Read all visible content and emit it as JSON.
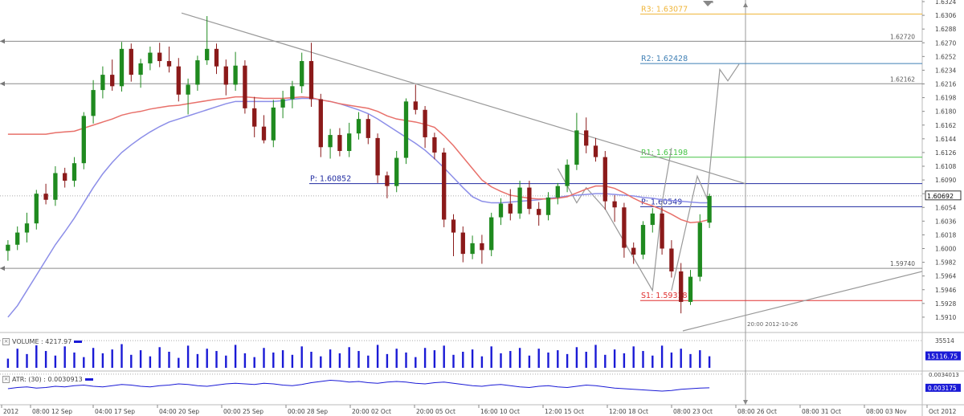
{
  "chart_data": [
    {
      "type": "line",
      "panel": "price",
      "ylim": [
        1.5892,
        1.6324
      ],
      "yticks": [
        "1.6324",
        "1.6306",
        "1.6288",
        "1.6270",
        "1.6252",
        "1.6234",
        "1.6216",
        "1.6198",
        "1.6180",
        "1.6162",
        "1.6144",
        "1.6126",
        "1.6108",
        "1.6090",
        "1.6072",
        "1.6054",
        "1.6036",
        "1.6018",
        "1.6000",
        "1.5982",
        "1.5964",
        "1.5946",
        "1.5928",
        "1.5910"
      ],
      "current_price_label": "1.60692",
      "current_price": 1.60692,
      "pivot_levels": [
        {
          "label": "R3: 1.63077",
          "value": 1.63077,
          "color": "#f0b63b"
        },
        {
          "label": "R2: 1.62428",
          "value": 1.62428,
          "color": "#3f7fb4"
        },
        {
          "label": "R1: 1.61198",
          "value": 1.61198,
          "color": "#45c445"
        },
        {
          "label": "P: 1.60852",
          "value": 1.60852,
          "color": "#1f2aa0"
        },
        {
          "label": "P: 1.60549",
          "value": 1.60549,
          "color": "#1f2aa0"
        },
        {
          "label": "S1: 1.59318",
          "value": 1.59318,
          "color": "#e03030"
        }
      ],
      "horizontal_lines": [
        {
          "label": "1.62720",
          "value": 1.6272
        },
        {
          "label": "1.62162",
          "value": 1.62162
        },
        {
          "label": "1.59740",
          "value": 1.5974
        }
      ],
      "vline_label": "20:00 2012-10-26",
      "xticks": [
        "2012",
        "08:00 12 Sep",
        "04:00 17 Sep",
        "04:00 20 Sep",
        "00:00 25 Sep",
        "00:00 28 Sep",
        "20:00 02 Oct",
        "20:00 05 Oct",
        "16:00 10 Oct",
        "12:00 15 Oct",
        "12:00 18 Oct",
        "08:00 23 Oct",
        "08:00 26 Oct",
        "08:00 31 Oct",
        "08:00 03 Nov",
        "Oct 2012"
      ],
      "ohlc": [
        [
          1.5997,
          1.6011,
          1.5984,
          1.6005
        ],
        [
          1.6005,
          1.6029,
          1.5998,
          1.6021
        ],
        [
          1.6021,
          1.6047,
          1.6008,
          1.6033
        ],
        [
          1.6033,
          1.6077,
          1.6025,
          1.6072
        ],
        [
          1.6072,
          1.6085,
          1.6058,
          1.6064
        ],
        [
          1.6064,
          1.6108,
          1.6056,
          1.6099
        ],
        [
          1.6099,
          1.6106,
          1.608,
          1.6089
        ],
        [
          1.6089,
          1.612,
          1.6081,
          1.6112
        ],
        [
          1.6112,
          1.6179,
          1.6104,
          1.6174
        ],
        [
          1.6174,
          1.6221,
          1.6164,
          1.6208
        ],
        [
          1.6208,
          1.6239,
          1.6197,
          1.6228
        ],
        [
          1.6228,
          1.6248,
          1.6207,
          1.6213
        ],
        [
          1.6213,
          1.6271,
          1.6206,
          1.6262
        ],
        [
          1.6262,
          1.6269,
          1.6219,
          1.6228
        ],
        [
          1.6228,
          1.6249,
          1.6211,
          1.6243
        ],
        [
          1.6243,
          1.6265,
          1.6234,
          1.6257
        ],
        [
          1.6257,
          1.627,
          1.6238,
          1.6246
        ],
        [
          1.6246,
          1.6265,
          1.6231,
          1.6239
        ],
        [
          1.6239,
          1.625,
          1.6193,
          1.6202
        ],
        [
          1.6202,
          1.6223,
          1.6176,
          1.6215
        ],
        [
          1.6215,
          1.6253,
          1.6207,
          1.6247
        ],
        [
          1.6247,
          1.6305,
          1.6241,
          1.6262
        ],
        [
          1.6262,
          1.6269,
          1.6229,
          1.6239
        ],
        [
          1.6239,
          1.6248,
          1.6201,
          1.6215
        ],
        [
          1.6215,
          1.6258,
          1.6207,
          1.624
        ],
        [
          1.624,
          1.6247,
          1.6177,
          1.6184
        ],
        [
          1.6184,
          1.6199,
          1.6146,
          1.616
        ],
        [
          1.616,
          1.6175,
          1.6138,
          1.6142
        ],
        [
          1.6142,
          1.6195,
          1.6133,
          1.6185
        ],
        [
          1.6185,
          1.6207,
          1.6171,
          1.6196
        ],
        [
          1.6196,
          1.622,
          1.6184,
          1.6213
        ],
        [
          1.6213,
          1.6257,
          1.6204,
          1.6246
        ],
        [
          1.6246,
          1.627,
          1.6186,
          1.6196
        ],
        [
          1.6196,
          1.6203,
          1.612,
          1.6133
        ],
        [
          1.6133,
          1.6157,
          1.6118,
          1.6149
        ],
        [
          1.6149,
          1.6158,
          1.6121,
          1.6128
        ],
        [
          1.6128,
          1.6165,
          1.612,
          1.6151
        ],
        [
          1.6151,
          1.6179,
          1.6143,
          1.617
        ],
        [
          1.617,
          1.6176,
          1.6137,
          1.6145
        ],
        [
          1.6145,
          1.6151,
          1.6086,
          1.6096
        ],
        [
          1.6096,
          1.6101,
          1.6066,
          1.6082
        ],
        [
          1.6082,
          1.6128,
          1.6074,
          1.6119
        ],
        [
          1.6119,
          1.6197,
          1.6111,
          1.6193
        ],
        [
          1.6193,
          1.6215,
          1.6176,
          1.6182
        ],
        [
          1.6182,
          1.6187,
          1.6132,
          1.6146
        ],
        [
          1.6146,
          1.6152,
          1.6117,
          1.6126
        ],
        [
          1.6126,
          1.6132,
          1.6028,
          1.6038
        ],
        [
          1.6038,
          1.6045,
          1.599,
          1.6021
        ],
        [
          1.6021,
          1.6029,
          1.5982,
          1.5993
        ],
        [
          1.5993,
          1.6017,
          1.5986,
          1.6007
        ],
        [
          1.6007,
          1.6018,
          1.598,
          1.5998
        ],
        [
          1.5998,
          1.6047,
          1.599,
          1.6041
        ],
        [
          1.6041,
          1.6066,
          1.6031,
          1.6059
        ],
        [
          1.6059,
          1.6078,
          1.6037,
          1.6046
        ],
        [
          1.6046,
          1.6089,
          1.6039,
          1.608
        ],
        [
          1.608,
          1.6089,
          1.6045,
          1.6052
        ],
        [
          1.6052,
          1.6061,
          1.603,
          1.6044
        ],
        [
          1.6044,
          1.6074,
          1.6037,
          1.6067
        ],
        [
          1.6067,
          1.6086,
          1.6058,
          1.6082
        ],
        [
          1.6082,
          1.6117,
          1.6074,
          1.611
        ],
        [
          1.611,
          1.6178,
          1.6103,
          1.6155
        ],
        [
          1.6155,
          1.6172,
          1.6125,
          1.6135
        ],
        [
          1.6135,
          1.6145,
          1.6114,
          1.612
        ],
        [
          1.612,
          1.6128,
          1.6051,
          1.6062
        ],
        [
          1.6062,
          1.607,
          1.6035,
          1.6054
        ],
        [
          1.6054,
          1.606,
          1.5988,
          1.6001
        ],
        [
          1.6001,
          1.6008,
          1.598,
          1.5992
        ],
        [
          1.5992,
          1.6036,
          1.5986,
          1.6031
        ],
        [
          1.6031,
          1.6053,
          1.6021,
          1.6046
        ],
        [
          1.6046,
          1.6054,
          1.5992,
          1.6
        ],
        [
          1.6,
          1.6011,
          1.5962,
          1.597
        ],
        [
          1.597,
          1.5981,
          1.5915,
          1.593
        ],
        [
          1.593,
          1.5972,
          1.5926,
          1.5963
        ],
        [
          1.5963,
          1.6045,
          1.5957,
          1.6034
        ],
        [
          1.6034,
          1.6072,
          1.6027,
          1.6069
        ]
      ],
      "ma_red": [
        1.615,
        1.615,
        1.615,
        1.615,
        1.615,
        1.6152,
        1.6153,
        1.6154,
        1.6158,
        1.6162,
        1.6166,
        1.617,
        1.6175,
        1.6178,
        1.618,
        1.6183,
        1.6185,
        1.6187,
        1.6188,
        1.619,
        1.6192,
        1.6194,
        1.6196,
        1.6197,
        1.6199,
        1.6199,
        1.6198,
        1.6197,
        1.6197,
        1.6197,
        1.6198,
        1.6199,
        1.6198,
        1.6195,
        1.6193,
        1.619,
        1.6188,
        1.6186,
        1.6184,
        1.618,
        1.6174,
        1.617,
        1.6168,
        1.6166,
        1.6163,
        1.6159,
        1.6148,
        1.6135,
        1.612,
        1.6105,
        1.609,
        1.6081,
        1.6075,
        1.607,
        1.6068,
        1.6066,
        1.6065,
        1.6065,
        1.6066,
        1.6068,
        1.6073,
        1.6078,
        1.6082,
        1.6082,
        1.6079,
        1.6073,
        1.6066,
        1.606,
        1.6056,
        1.6051,
        1.6045,
        1.6038,
        1.6034,
        1.6035,
        1.6038
      ],
      "ma_blue": [
        1.591,
        1.5925,
        1.5945,
        1.5965,
        1.5985,
        1.6005,
        1.6022,
        1.604,
        1.606,
        1.608,
        1.6098,
        1.6113,
        1.6126,
        1.6136,
        1.6145,
        1.6153,
        1.616,
        1.6166,
        1.617,
        1.6174,
        1.6178,
        1.6182,
        1.6186,
        1.619,
        1.6193,
        1.6193,
        1.6193,
        1.6193,
        1.6193,
        1.6194,
        1.6196,
        1.6197,
        1.6197,
        1.6195,
        1.6193,
        1.619,
        1.6186,
        1.6182,
        1.6177,
        1.617,
        1.6162,
        1.6154,
        1.6146,
        1.6138,
        1.6129,
        1.6118,
        1.6106,
        1.6093,
        1.608,
        1.6068,
        1.6062,
        1.606,
        1.606,
        1.6061,
        1.6062,
        1.6063,
        1.6064,
        1.6066,
        1.6067,
        1.6069,
        1.607,
        1.6071,
        1.6072,
        1.6072,
        1.6071,
        1.607,
        1.6069,
        1.6067,
        1.6066,
        1.6064,
        1.6063,
        1.6062,
        1.6061,
        1.606,
        1.606
      ]
    },
    {
      "type": "bar",
      "panel": "volume",
      "title": "VOLUME : 4217.97",
      "ylim": [
        0,
        42000
      ],
      "yticks": [
        "35514"
      ],
      "current_label": "15116.75",
      "current_value": 15116.75,
      "values": [
        12000,
        25000,
        18000,
        30000,
        22000,
        16000,
        28000,
        20000,
        14000,
        26000,
        19000,
        24000,
        31000,
        17000,
        23000,
        15000,
        27000,
        21000,
        13000,
        29000,
        18000,
        25000,
        22000,
        16000,
        30000,
        19000,
        14000,
        26000,
        20000,
        23000,
        17000,
        28000,
        21000,
        15000,
        24000,
        19000,
        27000,
        22000,
        16000,
        30000,
        18000,
        25000,
        20000,
        14000,
        26000,
        23000,
        29000,
        17000,
        21000,
        24000,
        15000,
        28000,
        19000,
        22000,
        26000,
        16000,
        25000,
        20000,
        23000,
        18000,
        27000,
        21000,
        30000,
        17000,
        24000,
        19000,
        28000,
        22000,
        16000,
        29000,
        20000,
        25000,
        18000,
        23000,
        15116
      ]
    },
    {
      "type": "line",
      "panel": "atr",
      "title": "ATR: (30) : 0.0030913",
      "ylim": [
        0.003,
        0.0034
      ],
      "yticks": [
        "0.0034013"
      ],
      "current_label": "0.003175",
      "current_value": 0.003175,
      "values": [
        0.00316,
        0.00318,
        0.00319,
        0.00317,
        0.00318,
        0.0032,
        0.00319,
        0.00321,
        0.00322,
        0.0032,
        0.00319,
        0.00321,
        0.00323,
        0.00322,
        0.0032,
        0.00319,
        0.00321,
        0.00322,
        0.00324,
        0.00323,
        0.00321,
        0.0032,
        0.00322,
        0.00324,
        0.00325,
        0.00324,
        0.00323,
        0.00325,
        0.00324,
        0.00322,
        0.00321,
        0.00323,
        0.00326,
        0.00328,
        0.0033,
        0.00329,
        0.00327,
        0.00328,
        0.00326,
        0.00325,
        0.00327,
        0.00328,
        0.00327,
        0.00325,
        0.00324,
        0.00326,
        0.00327,
        0.00325,
        0.00323,
        0.00321,
        0.0032,
        0.00322,
        0.00323,
        0.00321,
        0.00319,
        0.00318,
        0.0032,
        0.00321,
        0.00319,
        0.00318,
        0.0032,
        0.00322,
        0.00321,
        0.00319,
        0.00317,
        0.00316,
        0.00315,
        0.00314,
        0.00313,
        0.00312,
        0.00313,
        0.00315,
        0.00316,
        0.00317,
        0.003175
      ]
    }
  ],
  "colors": {
    "bull": "#1f8a1f",
    "bear": "#8b1a1a",
    "ma_red": "#e8706a",
    "ma_blue": "#8c8ee8",
    "trend": "#999999",
    "volume": "#1a1ad6",
    "atr": "#1a1ad6"
  }
}
